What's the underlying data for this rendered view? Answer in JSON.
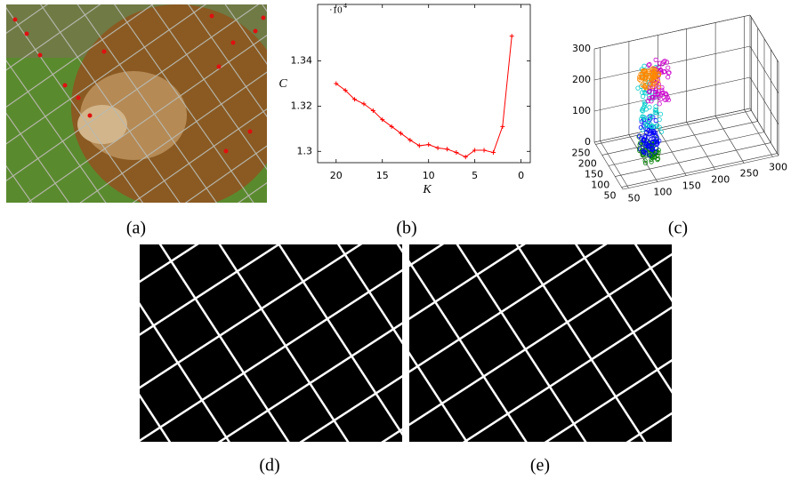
{
  "figure": {
    "labels": [
      "(a)",
      "(b)",
      "(c)",
      "(d)",
      "(e)"
    ]
  },
  "chart_data": {
    "type": "line",
    "xlabel": "K",
    "ylabel": "C",
    "y_multiplier": "·10",
    "y_multiplier_exponent": "4",
    "x": [
      20,
      19,
      18,
      17,
      16,
      15,
      14,
      13,
      12,
      11,
      10,
      9,
      8,
      7,
      6,
      5,
      4,
      3,
      2,
      1
    ],
    "values": [
      1.33,
      1.327,
      1.323,
      1.321,
      1.318,
      1.314,
      1.311,
      1.308,
      1.305,
      1.3025,
      1.303,
      1.3015,
      1.301,
      1.2995,
      1.2975,
      1.3005,
      1.3005,
      1.2995,
      1.311,
      1.351
    ],
    "color": "#ff0000",
    "marker": "+",
    "xlim": [
      22,
      -1
    ],
    "ylim": [
      1.295,
      1.365
    ],
    "xticks": [
      20,
      15,
      10,
      5,
      0
    ],
    "yticks": [
      1.3,
      1.32,
      1.34
    ]
  },
  "panel_c": {
    "xticks": [
      50,
      100,
      150,
      200,
      250,
      300
    ],
    "yticks": [
      50,
      100,
      150,
      200,
      250
    ],
    "zticks": [
      0,
      100,
      200,
      300
    ],
    "xlim": [
      40,
      310
    ],
    "ylim": [
      40,
      260
    ],
    "zlim": [
      0,
      300
    ]
  }
}
